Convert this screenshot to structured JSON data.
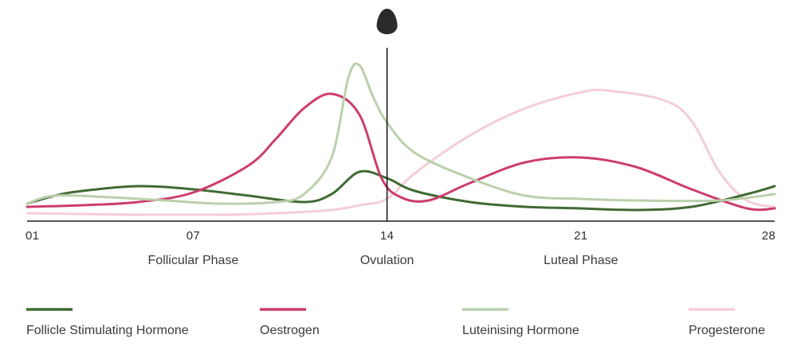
{
  "chart_data": {
    "type": "line",
    "xlim": [
      1,
      28
    ],
    "ylim": [
      0,
      100
    ],
    "grid": false,
    "legend_position": "bottom",
    "x_ticks": [
      {
        "value": 1,
        "label": "01"
      },
      {
        "value": 7,
        "label": "07"
      },
      {
        "value": 14,
        "label": "14"
      },
      {
        "value": 21,
        "label": "21"
      },
      {
        "value": 28,
        "label": "28"
      }
    ],
    "phases": [
      {
        "label": "Follicular Phase",
        "x": 7
      },
      {
        "label": "Ovulation",
        "x": 14
      },
      {
        "label": "Luteal Phase",
        "x": 21
      }
    ],
    "marker": {
      "x": 14,
      "icon": "drop-icon"
    },
    "series": [
      {
        "name": "Follicle Stimulating Hormone",
        "color": "#3f6b33",
        "points": [
          [
            1,
            6
          ],
          [
            2,
            11
          ],
          [
            3,
            14
          ],
          [
            5,
            17
          ],
          [
            7,
            15
          ],
          [
            9,
            11
          ],
          [
            11,
            7
          ],
          [
            12,
            12
          ],
          [
            13,
            26
          ],
          [
            14,
            22
          ],
          [
            15,
            14
          ],
          [
            17,
            7
          ],
          [
            19,
            4
          ],
          [
            21,
            3
          ],
          [
            23,
            2
          ],
          [
            25,
            4
          ],
          [
            27,
            12
          ],
          [
            28,
            17
          ]
        ]
      },
      {
        "name": "Oestrogen",
        "color": "#cc3d6d",
        "points": [
          [
            1,
            4
          ],
          [
            3,
            5
          ],
          [
            5,
            7
          ],
          [
            7,
            13
          ],
          [
            9,
            30
          ],
          [
            10,
            47
          ],
          [
            11,
            66
          ],
          [
            12,
            75
          ],
          [
            13,
            62
          ],
          [
            13.8,
            22
          ],
          [
            14.5,
            10
          ],
          [
            15.5,
            8
          ],
          [
            17,
            19
          ],
          [
            19,
            32
          ],
          [
            21,
            35
          ],
          [
            23,
            29
          ],
          [
            25,
            15
          ],
          [
            27,
            3
          ],
          [
            28,
            3
          ]
        ]
      },
      {
        "name": "Luteinising Hormone",
        "color": "#bad0ab",
        "points": [
          [
            1,
            6
          ],
          [
            2,
            11
          ],
          [
            4,
            10
          ],
          [
            6,
            8
          ],
          [
            8,
            6
          ],
          [
            10,
            7
          ],
          [
            11,
            12
          ],
          [
            12,
            35
          ],
          [
            12.6,
            85
          ],
          [
            13,
            93
          ],
          [
            13.5,
            73
          ],
          [
            14,
            57
          ],
          [
            15,
            38
          ],
          [
            17,
            22
          ],
          [
            19,
            11
          ],
          [
            21,
            9
          ],
          [
            23,
            8
          ],
          [
            26,
            8
          ],
          [
            28,
            12
          ]
        ]
      },
      {
        "name": "Progesterone",
        "color": "#f4cdd8",
        "points": [
          [
            1,
            0
          ],
          [
            5,
            -1
          ],
          [
            8,
            -1
          ],
          [
            10,
            0
          ],
          [
            12,
            2
          ],
          [
            13,
            5
          ],
          [
            14,
            9
          ],
          [
            15,
            25
          ],
          [
            17,
            49
          ],
          [
            19,
            66
          ],
          [
            21,
            76
          ],
          [
            22,
            77
          ],
          [
            24,
            71
          ],
          [
            25,
            58
          ],
          [
            26,
            26
          ],
          [
            27,
            8
          ],
          [
            28,
            4
          ]
        ]
      }
    ]
  }
}
